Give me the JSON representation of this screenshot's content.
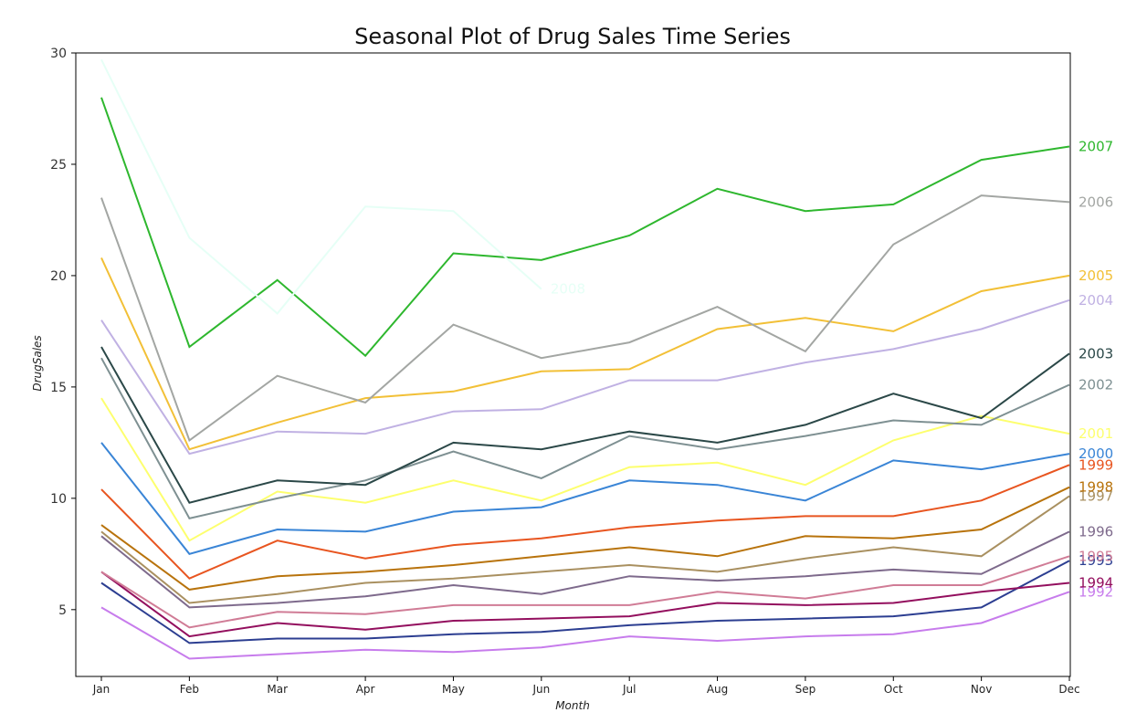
{
  "chart_data": {
    "type": "line",
    "title": "Seasonal Plot of Drug Sales Time Series",
    "xlabel": "Month",
    "ylabel": "DrugSales",
    "categories": [
      "Jan",
      "Feb",
      "Mar",
      "Apr",
      "May",
      "Jun",
      "Jul",
      "Aug",
      "Sep",
      "Oct",
      "Nov",
      "Dec"
    ],
    "ylim": [
      2.0,
      30.0
    ],
    "yticks": [
      5,
      10,
      15,
      20,
      25,
      30
    ],
    "ytick_labels": [
      "5",
      "10",
      "15",
      "20",
      "25",
      "30"
    ],
    "grid": false,
    "series": [
      {
        "name": "1992",
        "color": "#c77cec",
        "values": [
          5.1,
          2.8,
          3.0,
          3.2,
          3.1,
          3.3,
          3.8,
          3.6,
          3.8,
          3.9,
          4.4,
          5.8
        ]
      },
      {
        "name": "1993",
        "color": "#2c3e91",
        "values": [
          6.2,
          3.5,
          3.7,
          3.7,
          3.9,
          4.0,
          4.3,
          4.5,
          4.6,
          4.7,
          5.1,
          7.2
        ]
      },
      {
        "name": "1994",
        "color": "#930f5e",
        "values": [
          6.7,
          3.8,
          4.4,
          4.1,
          4.5,
          4.6,
          4.7,
          5.3,
          5.2,
          5.3,
          5.8,
          6.2
        ]
      },
      {
        "name": "1995",
        "color": "#d07c96",
        "values": [
          6.7,
          4.2,
          4.9,
          4.8,
          5.2,
          5.2,
          5.2,
          5.8,
          5.5,
          6.1,
          6.1,
          7.4
        ]
      },
      {
        "name": "1996",
        "color": "#7e6a8c",
        "values": [
          8.3,
          5.1,
          5.3,
          5.6,
          6.1,
          5.7,
          6.5,
          6.3,
          6.5,
          6.8,
          6.6,
          8.5
        ]
      },
      {
        "name": "1997",
        "color": "#a99060",
        "values": [
          8.5,
          5.3,
          5.7,
          6.2,
          6.4,
          6.7,
          7.0,
          6.7,
          7.3,
          7.8,
          7.4,
          10.1
        ]
      },
      {
        "name": "1998",
        "color": "#b8730c",
        "values": [
          8.8,
          5.9,
          6.5,
          6.7,
          7.0,
          7.4,
          7.8,
          7.4,
          8.3,
          8.2,
          8.6,
          10.5
        ]
      },
      {
        "name": "1999",
        "color": "#e85520",
        "values": [
          10.4,
          6.4,
          8.1,
          7.3,
          7.9,
          8.2,
          8.7,
          9.0,
          9.2,
          9.2,
          9.9,
          11.5
        ]
      },
      {
        "name": "2000",
        "color": "#3a85d6",
        "values": [
          12.5,
          7.5,
          8.6,
          8.5,
          9.4,
          9.6,
          10.8,
          10.6,
          9.9,
          11.7,
          11.3,
          12.0
        ]
      },
      {
        "name": "2001",
        "color": "#fdff6e",
        "values": [
          14.5,
          8.1,
          10.3,
          9.8,
          10.8,
          9.9,
          11.4,
          11.6,
          10.6,
          12.6,
          13.7,
          12.9
        ]
      },
      {
        "name": "2002",
        "color": "#7e9092",
        "values": [
          16.3,
          9.1,
          10.0,
          10.8,
          12.1,
          10.9,
          12.8,
          12.2,
          12.8,
          13.5,
          13.3,
          15.1
        ]
      },
      {
        "name": "2003",
        "color": "#2b4848",
        "values": [
          16.8,
          9.8,
          10.8,
          10.6,
          12.5,
          12.2,
          13.0,
          12.5,
          13.3,
          14.7,
          13.6,
          16.5
        ]
      },
      {
        "name": "2004",
        "color": "#c0b1e3",
        "values": [
          18.0,
          12.0,
          13.0,
          12.9,
          13.9,
          14.0,
          15.3,
          15.3,
          16.1,
          16.7,
          17.6,
          18.9
        ]
      },
      {
        "name": "2005",
        "color": "#f2c037",
        "values": [
          20.8,
          12.2,
          13.4,
          14.5,
          14.8,
          15.7,
          15.8,
          17.6,
          18.1,
          17.5,
          19.3,
          20.0
        ]
      },
      {
        "name": "2006",
        "color": "#a3a6a3",
        "values": [
          23.5,
          12.6,
          15.5,
          14.3,
          17.8,
          16.3,
          17.0,
          18.6,
          16.6,
          21.4,
          23.6,
          23.3
        ]
      },
      {
        "name": "2007",
        "color": "#2eb72e",
        "values": [
          28.0,
          16.8,
          19.8,
          16.4,
          21.0,
          20.7,
          21.8,
          23.9,
          22.9,
          23.2,
          25.2,
          25.8
        ]
      },
      {
        "name": "2008",
        "color": "#e6fff6",
        "values": [
          29.7,
          21.7,
          18.3,
          23.1,
          22.9,
          19.4,
          null,
          null,
          null,
          null,
          null,
          null
        ]
      }
    ]
  }
}
